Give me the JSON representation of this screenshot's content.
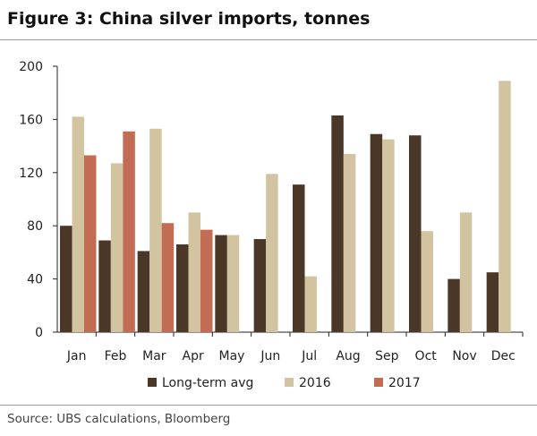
{
  "figure": {
    "title": "Figure 3: China silver imports, tonnes",
    "source": "Source:  UBS calculations, Bloomberg"
  },
  "colors": {
    "long_term_avg": "#4a3728",
    "y2016": "#d2c4a0",
    "y2017": "#c36c54"
  },
  "chart_data": {
    "type": "bar",
    "categories": [
      "Jan",
      "Feb",
      "Mar",
      "Apr",
      "May",
      "Jun",
      "Jul",
      "Aug",
      "Sep",
      "Oct",
      "Nov",
      "Dec"
    ],
    "series": [
      {
        "name": "Long-term avg",
        "values": [
          80,
          69,
          61,
          66,
          73,
          70,
          111,
          163,
          149,
          148,
          40,
          45
        ]
      },
      {
        "name": "2016",
        "values": [
          162,
          127,
          153,
          90,
          73,
          119,
          42,
          134,
          145,
          76,
          90,
          189
        ]
      },
      {
        "name": "2017",
        "values": [
          133,
          151,
          82,
          77,
          null,
          null,
          null,
          null,
          null,
          null,
          null,
          null
        ]
      }
    ],
    "yticks": [
      0,
      40,
      80,
      120,
      160,
      200
    ],
    "ylim": [
      0,
      200
    ],
    "legend_position": "bottom"
  }
}
